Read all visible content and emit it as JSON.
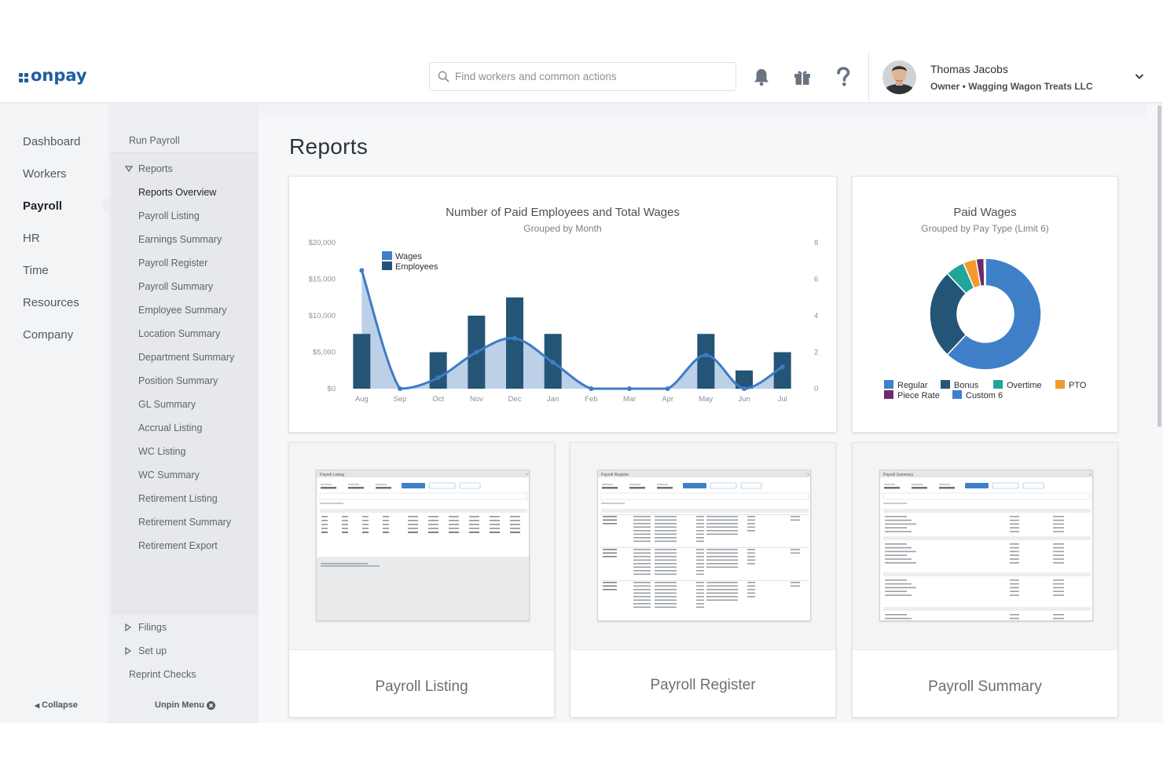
{
  "brand": {
    "name": "onpay",
    "color": "#1f5d9e"
  },
  "header": {
    "search_placeholder": "Find workers and common actions",
    "user_name": "Thomas Jacobs",
    "user_role": "Owner • Wagging Wagon Treats LLC"
  },
  "nav_primary": [
    "Dashboard",
    "Workers",
    "Payroll",
    "HR",
    "Time",
    "Resources",
    "Company"
  ],
  "nav_primary_active": "Payroll",
  "nav_secondary": {
    "run_payroll": "Run Payroll",
    "reports": "Reports",
    "report_links": [
      "Reports Overview",
      "Payroll Listing",
      "Earnings Summary",
      "Payroll Register",
      "Payroll Summary",
      "Employee Summary",
      "Location Summary",
      "Department Summary",
      "Position Summary",
      "GL Summary",
      "Accrual Listing",
      "WC Listing",
      "WC Summary",
      "Retirement Listing",
      "Retirement Summary",
      "Retirement Export"
    ],
    "filings": "Filings",
    "set_up": "Set up",
    "reprint_checks": "Reprint Checks"
  },
  "footer": {
    "collapse": "Collapse",
    "unpin": "Unpin Menu"
  },
  "page": {
    "title": "Reports"
  },
  "chart_data": [
    {
      "type": "bar",
      "title": "Number of Paid Employees and Total Wages",
      "subtitle": "Grouped by Month",
      "categories": [
        "Aug",
        "Sep",
        "Oct",
        "Nov",
        "Dec",
        "Jan",
        "Feb",
        "Mar",
        "Apr",
        "May",
        "Jun",
        "Jul"
      ],
      "left_axis_ticks": [
        "$20,000",
        "$15,000",
        "$10,000",
        "$5,000",
        "$0"
      ],
      "right_axis_ticks": [
        "8",
        "6",
        "4",
        "2",
        "0"
      ],
      "ylim_left": [
        0,
        20000
      ],
      "ylim_right": [
        0,
        8
      ],
      "legend_position": "top-left",
      "series": [
        {
          "name": "Wages",
          "kind": "area",
          "axis": "left",
          "color": "#8fb0d9",
          "values": [
            16200,
            0,
            1500,
            5000,
            6900,
            3600,
            0,
            0,
            0,
            4600,
            0,
            3000
          ]
        },
        {
          "name": "Employees",
          "kind": "bar",
          "axis": "right",
          "color": "#245576",
          "values": [
            3,
            0,
            2,
            4,
            5,
            3,
            0,
            0,
            0,
            3,
            1,
            2
          ]
        }
      ],
      "line_color": "#3e7cc4"
    },
    {
      "type": "pie",
      "title": "Paid Wages",
      "subtitle": "Grouped by Pay Type (Limit 6)",
      "donut": true,
      "legend_position": "bottom",
      "slices": [
        {
          "label": "Regular",
          "value": 62,
          "color": "#3f80c8"
        },
        {
          "label": "Bonus",
          "value": 26,
          "color": "#245576"
        },
        {
          "label": "Overtime",
          "value": 5.5,
          "color": "#1fa59a"
        },
        {
          "label": "PTO",
          "value": 3.8,
          "color": "#f29a2e"
        },
        {
          "label": "Piece Rate",
          "value": 2.3,
          "color": "#6b2a6a"
        },
        {
          "label": "Custom 6",
          "value": 0.4,
          "color": "#3f80c8"
        }
      ]
    }
  ],
  "report_cards": [
    {
      "label": "Payroll Listing",
      "thumb_title": "Payroll Listing"
    },
    {
      "label": "Payroll Register",
      "thumb_title": "Payroll Register"
    },
    {
      "label": "Payroll Summary",
      "thumb_title": "Payroll Summary"
    }
  ]
}
